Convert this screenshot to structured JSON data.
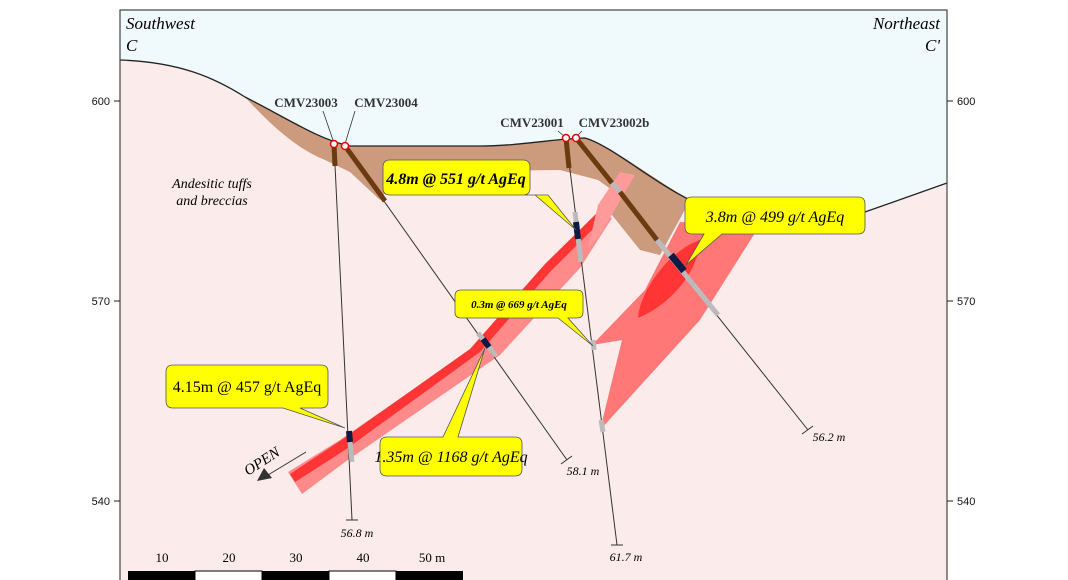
{
  "section": {
    "left_direction": "Southwest",
    "left_label": "C",
    "right_direction": "Northeast",
    "right_label": "C'"
  },
  "elevation_axis": {
    "ticks": [
      "600",
      "570",
      "540"
    ]
  },
  "lithology_label": [
    "Andesitic tuffs",
    "and breccias"
  ],
  "drillholes": [
    {
      "name": "CMV23003",
      "depth": "56.8 m"
    },
    {
      "name": "CMV23004",
      "depth": "58.1 m"
    },
    {
      "name": "CMV23001",
      "depth": "61.7 m"
    },
    {
      "name": "CMV23002b",
      "depth": "56.2 m"
    }
  ],
  "intercepts": [
    {
      "text": "4.8m @ 551 g/t AgEq"
    },
    {
      "text": "3.8m @ 499 g/t AgEq"
    },
    {
      "text": "0.3m @ 669 g/t AgEq"
    },
    {
      "text": "4.15m @ 457 g/t AgEq"
    },
    {
      "text": "1.35m @ 1168 g/t AgEq"
    }
  ],
  "open_label": "OPEN",
  "scale_bar": {
    "ticks": [
      "10",
      "20",
      "30",
      "40",
      "50 m"
    ]
  },
  "colors": {
    "sky": "#f0fafd",
    "bedrock": "#fbeceb",
    "overburden": "#cc9a7c",
    "vein_halo": "#ff8080",
    "vein_core": "#ff3535",
    "callout": "#ffff00",
    "intercept": "#0d1a44"
  }
}
